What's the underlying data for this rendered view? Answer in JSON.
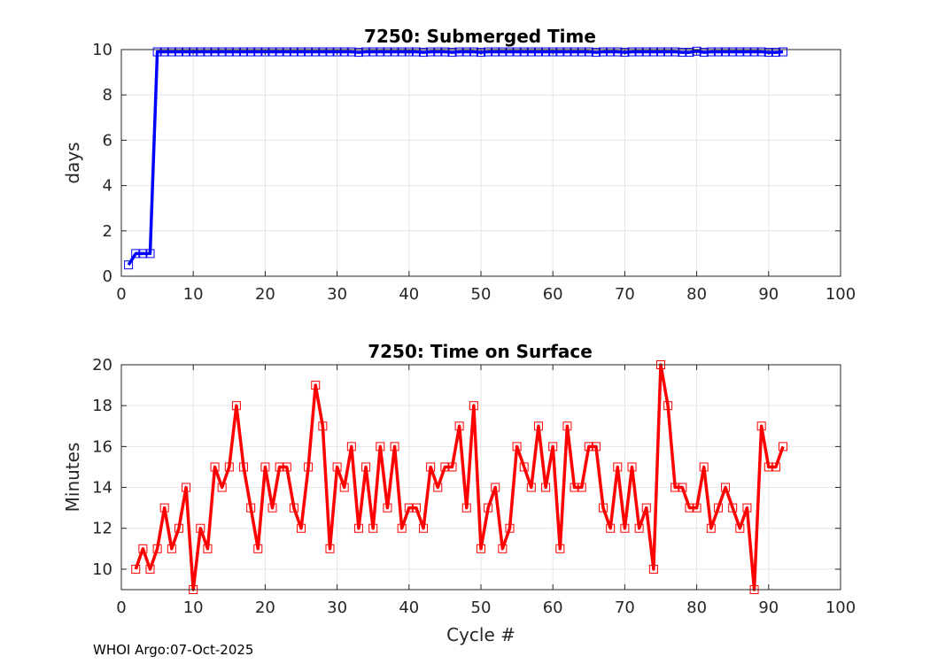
{
  "footer": "WHOI Argo:07-Oct-2025",
  "chart_data": [
    {
      "type": "line",
      "title": "7250: Submerged Time",
      "xlabel": "",
      "ylabel": "days",
      "xlim": [
        0,
        100
      ],
      "ylim": [
        0,
        10
      ],
      "xticks": [
        0,
        10,
        20,
        30,
        40,
        50,
        60,
        70,
        80,
        90,
        100
      ],
      "yticks": [
        0,
        2,
        4,
        6,
        8,
        10
      ],
      "grid": true,
      "color": "#0000ff",
      "marker": "square",
      "series": [
        {
          "name": "Submerged Time",
          "x": [
            1,
            2,
            3,
            4,
            5,
            6,
            7,
            8,
            9,
            10,
            11,
            12,
            13,
            14,
            15,
            16,
            17,
            18,
            19,
            20,
            21,
            22,
            23,
            24,
            25,
            26,
            27,
            28,
            29,
            30,
            31,
            32,
            33,
            34,
            35,
            36,
            37,
            38,
            39,
            40,
            41,
            42,
            43,
            44,
            45,
            46,
            47,
            48,
            49,
            50,
            51,
            52,
            53,
            54,
            55,
            56,
            57,
            58,
            59,
            60,
            61,
            62,
            63,
            64,
            65,
            66,
            67,
            68,
            69,
            70,
            71,
            72,
            73,
            74,
            75,
            76,
            77,
            78,
            79,
            80,
            81,
            82,
            83,
            84,
            85,
            86,
            87,
            88,
            89,
            90,
            91,
            92
          ],
          "y": [
            0.5,
            1,
            1,
            1,
            9.9,
            9.9,
            9.9,
            9.9,
            9.9,
            9.9,
            9.9,
            9.9,
            9.9,
            9.9,
            9.9,
            9.9,
            9.9,
            9.9,
            9.9,
            9.9,
            9.9,
            9.9,
            9.9,
            9.9,
            9.9,
            9.9,
            9.9,
            9.9,
            9.9,
            9.9,
            9.9,
            9.9,
            9.88,
            9.9,
            9.9,
            9.9,
            9.9,
            9.9,
            9.9,
            9.9,
            9.9,
            9.88,
            9.9,
            9.9,
            9.9,
            9.88,
            9.9,
            9.9,
            9.9,
            9.88,
            9.9,
            9.9,
            9.9,
            9.9,
            9.9,
            9.9,
            9.9,
            9.9,
            9.9,
            9.9,
            9.9,
            9.9,
            9.9,
            9.9,
            9.9,
            9.88,
            9.9,
            9.9,
            9.9,
            9.88,
            9.9,
            9.9,
            9.9,
            9.9,
            9.9,
            9.9,
            9.9,
            9.88,
            9.88,
            9.93,
            9.88,
            9.9,
            9.9,
            9.9,
            9.9,
            9.9,
            9.9,
            9.9,
            9.9,
            9.88,
            9.88,
            9.9
          ]
        }
      ]
    },
    {
      "type": "line",
      "title": "7250: Time on Surface",
      "xlabel": "Cycle #",
      "ylabel": "Minutes",
      "xlim": [
        0,
        100
      ],
      "ylim": [
        9,
        20
      ],
      "xticks": [
        0,
        10,
        20,
        30,
        40,
        50,
        60,
        70,
        80,
        90,
        100
      ],
      "yticks": [
        10,
        12,
        14,
        16,
        18,
        20
      ],
      "grid": true,
      "color": "#ff0000",
      "marker": "square",
      "series": [
        {
          "name": "Time on Surface",
          "x": [
            2,
            3,
            4,
            5,
            6,
            7,
            8,
            9,
            10,
            11,
            12,
            13,
            14,
            15,
            16,
            17,
            18,
            19,
            20,
            21,
            22,
            23,
            24,
            25,
            26,
            27,
            28,
            29,
            30,
            31,
            32,
            33,
            34,
            35,
            36,
            37,
            38,
            39,
            40,
            41,
            42,
            43,
            44,
            45,
            46,
            47,
            48,
            49,
            50,
            51,
            52,
            53,
            54,
            55,
            56,
            57,
            58,
            59,
            60,
            61,
            62,
            63,
            64,
            65,
            66,
            67,
            68,
            69,
            70,
            71,
            72,
            73,
            74,
            75,
            76,
            77,
            78,
            79,
            80,
            81,
            82,
            83,
            84,
            85,
            86,
            87,
            88,
            89,
            90,
            91,
            92
          ],
          "y": [
            10,
            11,
            10,
            11,
            13,
            11,
            12,
            14,
            9,
            12,
            11,
            15,
            14,
            15,
            18,
            15,
            13,
            11,
            15,
            13,
            15,
            15,
            13,
            12,
            15,
            19,
            17,
            11,
            15,
            14,
            16,
            12,
            15,
            12,
            16,
            13,
            16,
            12,
            13,
            13,
            12,
            15,
            14,
            15,
            15,
            17,
            13,
            18,
            11,
            13,
            14,
            11,
            12,
            16,
            15,
            14,
            17,
            14,
            16,
            11,
            17,
            14,
            14,
            16,
            16,
            13,
            12,
            15,
            12,
            15,
            12,
            13,
            10,
            20,
            18,
            14,
            14,
            13,
            13,
            15,
            12,
            13,
            14,
            13,
            12,
            13,
            9,
            17,
            15,
            15,
            16
          ]
        }
      ]
    }
  ]
}
